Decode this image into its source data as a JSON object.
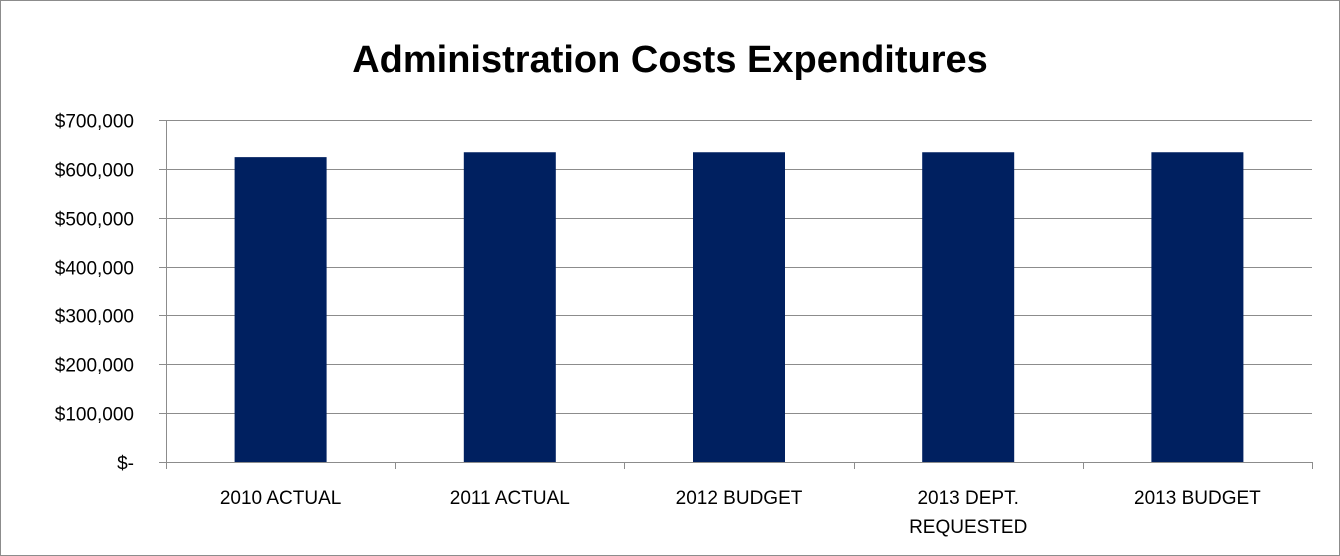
{
  "chart_data": {
    "type": "bar",
    "title": "Administration Costs Expenditures",
    "categories": [
      [
        "2010 ACTUAL"
      ],
      [
        "2011 ACTUAL"
      ],
      [
        "2012 BUDGET"
      ],
      [
        "2013 DEPT.",
        "REQUESTED"
      ],
      [
        "2013 BUDGET"
      ]
    ],
    "values": [
      624000,
      634000,
      634000,
      634000,
      634000
    ],
    "ylim": [
      0,
      700000
    ],
    "yticks": [
      0,
      100000,
      200000,
      300000,
      400000,
      500000,
      600000,
      700000
    ],
    "ytick_labels": [
      "$-",
      "$100,000",
      "$200,000",
      "$300,000",
      "$400,000",
      "$500,000",
      "$600,000",
      "$700,000"
    ],
    "grid": true,
    "legend": "none",
    "colors": {
      "bar": "#002060",
      "grid": "#8c8c8c",
      "axis": "#8c8c8c"
    }
  }
}
